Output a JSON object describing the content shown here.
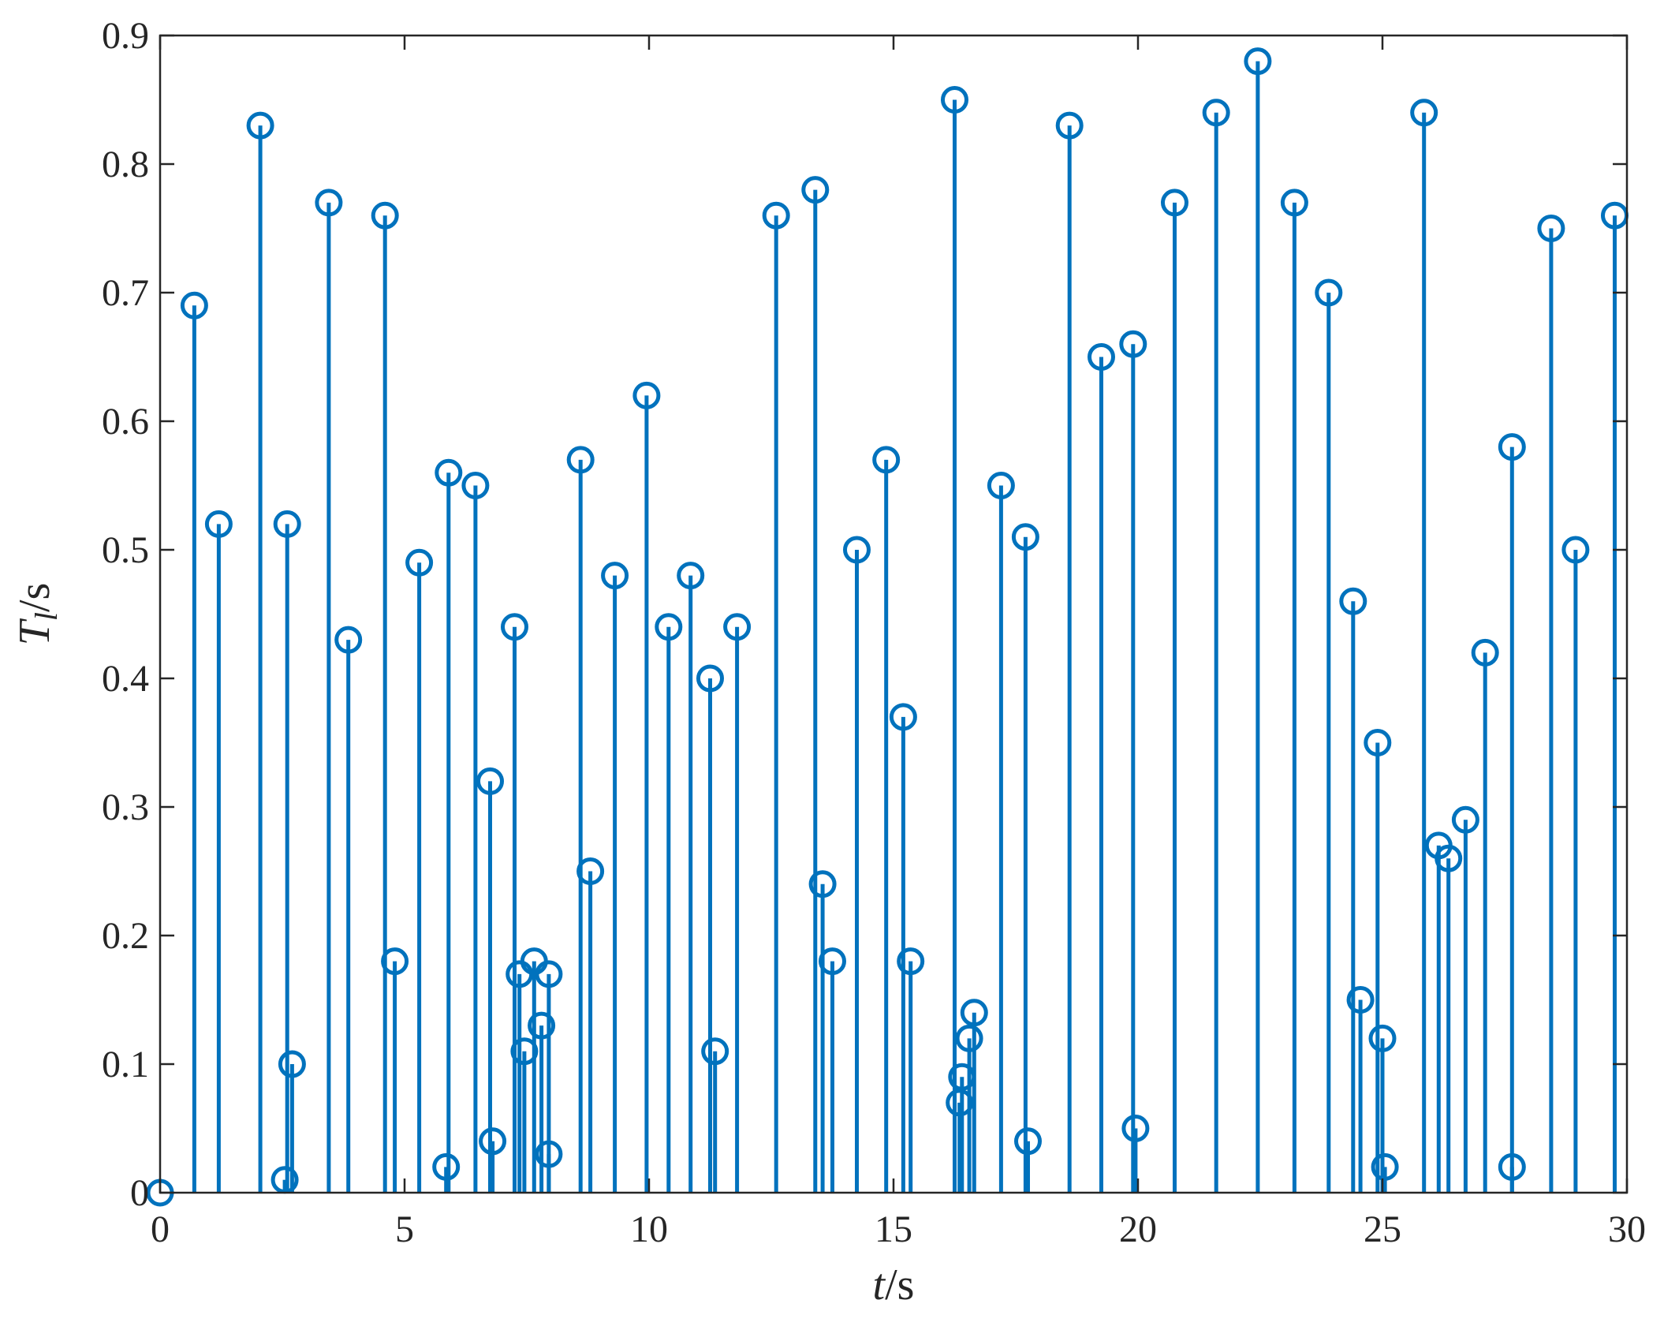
{
  "chart_data": {
    "type": "stem",
    "xlabel": {
      "var": "t",
      "unit": "/s"
    },
    "ylabel": {
      "var": "T",
      "sub": "l",
      "unit": "/s"
    },
    "xlim": [
      0,
      30
    ],
    "ylim": [
      0,
      0.9
    ],
    "xticks": [
      "0",
      "5",
      "10",
      "15",
      "20",
      "25",
      "30"
    ],
    "yticks": [
      "0",
      "0.1",
      "0.2",
      "0.3",
      "0.4",
      "0.5",
      "0.6",
      "0.7",
      "0.8",
      "0.9"
    ],
    "grid": false,
    "series_color": "#0072BD",
    "points": [
      [
        0.0,
        0.0
      ],
      [
        0.7,
        0.69
      ],
      [
        1.2,
        0.52
      ],
      [
        2.05,
        0.83
      ],
      [
        2.55,
        0.01
      ],
      [
        2.6,
        0.52
      ],
      [
        2.7,
        0.1
      ],
      [
        3.45,
        0.77
      ],
      [
        3.85,
        0.43
      ],
      [
        4.6,
        0.76
      ],
      [
        4.8,
        0.18
      ],
      [
        5.3,
        0.49
      ],
      [
        5.85,
        0.02
      ],
      [
        5.9,
        0.56
      ],
      [
        6.45,
        0.55
      ],
      [
        6.75,
        0.32
      ],
      [
        6.8,
        0.04
      ],
      [
        7.25,
        0.44
      ],
      [
        7.35,
        0.17
      ],
      [
        7.45,
        0.11
      ],
      [
        7.65,
        0.18
      ],
      [
        7.8,
        0.13
      ],
      [
        7.95,
        0.17
      ],
      [
        7.95,
        0.03
      ],
      [
        8.6,
        0.57
      ],
      [
        8.8,
        0.25
      ],
      [
        9.3,
        0.48
      ],
      [
        9.95,
        0.62
      ],
      [
        10.4,
        0.44
      ],
      [
        10.85,
        0.48
      ],
      [
        11.25,
        0.4
      ],
      [
        11.35,
        0.11
      ],
      [
        11.8,
        0.44
      ],
      [
        12.6,
        0.76
      ],
      [
        13.4,
        0.78
      ],
      [
        13.55,
        0.24
      ],
      [
        13.75,
        0.18
      ],
      [
        14.25,
        0.5
      ],
      [
        14.85,
        0.57
      ],
      [
        15.2,
        0.37
      ],
      [
        15.35,
        0.18
      ],
      [
        16.25,
        0.85
      ],
      [
        16.35,
        0.07
      ],
      [
        16.4,
        0.09
      ],
      [
        16.55,
        0.12
      ],
      [
        16.65,
        0.14
      ],
      [
        17.2,
        0.55
      ],
      [
        17.7,
        0.51
      ],
      [
        17.75,
        0.04
      ],
      [
        18.6,
        0.83
      ],
      [
        19.25,
        0.65
      ],
      [
        19.9,
        0.66
      ],
      [
        19.95,
        0.05
      ],
      [
        20.75,
        0.77
      ],
      [
        21.6,
        0.84
      ],
      [
        22.45,
        0.88
      ],
      [
        23.2,
        0.77
      ],
      [
        23.9,
        0.7
      ],
      [
        24.4,
        0.46
      ],
      [
        24.55,
        0.15
      ],
      [
        24.9,
        0.35
      ],
      [
        25.0,
        0.12
      ],
      [
        25.05,
        0.02
      ],
      [
        25.85,
        0.84
      ],
      [
        26.15,
        0.27
      ],
      [
        26.35,
        0.26
      ],
      [
        26.7,
        0.29
      ],
      [
        27.1,
        0.42
      ],
      [
        27.65,
        0.58
      ],
      [
        27.65,
        0.02
      ],
      [
        28.45,
        0.75
      ],
      [
        28.95,
        0.5
      ],
      [
        29.75,
        0.76
      ]
    ]
  }
}
